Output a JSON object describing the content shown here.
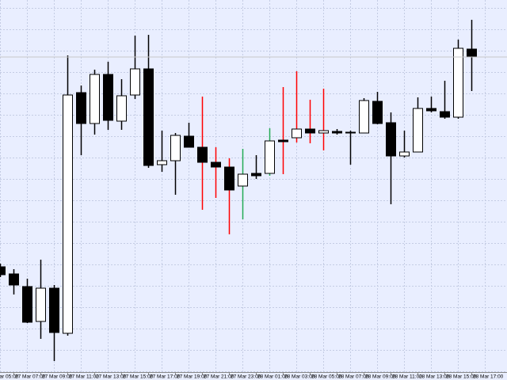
{
  "chart_data": {
    "type": "candlestick",
    "categories": [
      "27 Mar 05:00",
      null,
      "27 Mar 07:00",
      null,
      "27 Mar 09:00",
      null,
      "27 Mar 11:00",
      null,
      "27 Mar 13:00",
      null,
      "27 Mar 15:00",
      null,
      "27 Mar 17:00",
      null,
      "27 Mar 19:00",
      null,
      "27 Mar 21:00",
      null,
      "27 Mar 23:00",
      null,
      "28 Mar 01:00",
      null,
      "28 Mar 03:00",
      null,
      "28 Mar 05:00",
      null,
      "28 Mar 07:00",
      null,
      "28 Mar 09:00",
      null,
      "28 Mar 11:00",
      null,
      "28 Mar 13:00",
      null,
      "28 Mar 15:00",
      null,
      "28 Mar 17:00"
    ],
    "open": [
      null,
      143,
      134,
      118,
      74,
      116,
      59,
      363,
      324,
      386,
      327,
      360,
      393,
      272,
      277,
      308,
      294,
      275,
      269,
      245,
      261,
      261,
      303,
      306,
      317,
      312,
      314,
      313,
      312,
      352,
      325,
      283,
      288,
      343,
      339,
      332,
      418
    ],
    "high": [
      null,
      147,
      140,
      128,
      152,
      120,
      410,
      372,
      392,
      402,
      380,
      435,
      436,
      315,
      312,
      325,
      358,
      294,
      280,
      292,
      284,
      318,
      370,
      390,
      354,
      368,
      317,
      315,
      356,
      364,
      338,
      315,
      357,
      358,
      378,
      430,
      455
    ],
    "low": [
      null,
      130,
      108,
      72,
      52,
      24,
      56,
      284,
      310,
      316,
      316,
      355,
      268,
      263,
      234,
      294,
      215,
      230,
      184,
      203,
      254,
      258,
      260,
      300,
      299,
      290,
      310,
      272,
      312,
      323,
      222,
      281,
      288,
      338,
      330,
      330,
      365
    ],
    "close": [
      null,
      133,
      120,
      73,
      116,
      60,
      360,
      324,
      386,
      328,
      359,
      393,
      271,
      277,
      309,
      294,
      275,
      269,
      240,
      260,
      258,
      302,
      301,
      317,
      312,
      315,
      312,
      312,
      353,
      324,
      283,
      288,
      343,
      340,
      332,
      419,
      408
    ],
    "wick_colors": [
      null,
      "#000000",
      "#000000",
      "#000000",
      "#000000",
      "#000000",
      "#000000",
      "#000000",
      "#000000",
      "#000000",
      "#000000",
      "#000000",
      "#000000",
      "#000000",
      "#000000",
      "#000000",
      "#ff0000",
      "#ff0000",
      "#ff0000",
      "#22aa55",
      "#000000",
      "#22aa55",
      "#ff0000",
      "#ff0000",
      "#ff0000",
      "#ff0000",
      "#000000",
      "#000000",
      "#000000",
      "#000000",
      "#000000",
      "#000000",
      "#000000",
      "#000000",
      "#000000",
      "#000000",
      "#000000"
    ],
    "up_color": "#ffffff",
    "down_color": "#000000",
    "ylim": [
      10,
      480
    ],
    "grid": true
  }
}
